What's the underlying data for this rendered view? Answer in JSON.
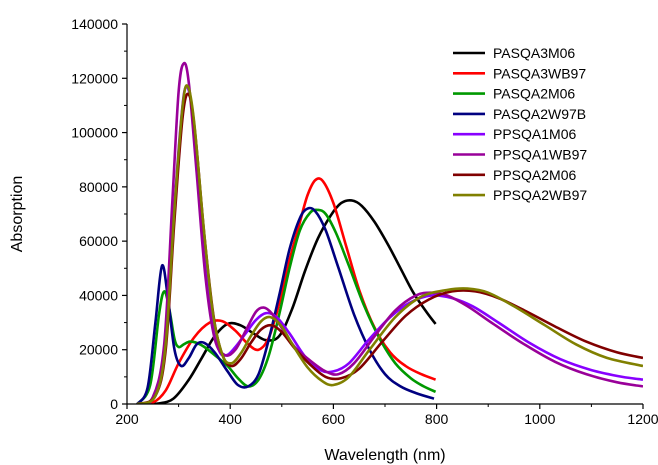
{
  "chart_data": {
    "type": "line",
    "title": "",
    "xlabel": "Wavelength (nm)",
    "ylabel": "Absorption",
    "xlim": [
      200,
      1200
    ],
    "ylim": [
      0,
      140000
    ],
    "x_ticks": [
      200,
      400,
      600,
      800,
      1000,
      1200
    ],
    "y_ticks": [
      0,
      20000,
      40000,
      60000,
      80000,
      100000,
      120000,
      140000
    ],
    "grid": false,
    "legend_position": "top-right",
    "series": [
      {
        "name": "PASQA3M06",
        "color": "#000000",
        "points": [
          [
            220,
            0
          ],
          [
            260,
            200
          ],
          [
            290,
            2000
          ],
          [
            320,
            9000
          ],
          [
            345,
            17000
          ],
          [
            370,
            25000
          ],
          [
            395,
            29500
          ],
          [
            420,
            29000
          ],
          [
            445,
            26000
          ],
          [
            470,
            23500
          ],
          [
            495,
            25000
          ],
          [
            520,
            35000
          ],
          [
            545,
            49000
          ],
          [
            570,
            61000
          ],
          [
            595,
            69500
          ],
          [
            615,
            74000
          ],
          [
            635,
            75000
          ],
          [
            655,
            73000
          ],
          [
            680,
            67000
          ],
          [
            705,
            59000
          ],
          [
            730,
            50000
          ],
          [
            755,
            41000
          ],
          [
            780,
            34000
          ],
          [
            798,
            29500
          ]
        ]
      },
      {
        "name": "PASQA3WB97",
        "color": "#ff0000",
        "points": [
          [
            220,
            0
          ],
          [
            250,
            500
          ],
          [
            275,
            5000
          ],
          [
            300,
            15000
          ],
          [
            330,
            24500
          ],
          [
            360,
            30000
          ],
          [
            385,
            30500
          ],
          [
            410,
            27000
          ],
          [
            435,
            22000
          ],
          [
            455,
            20000
          ],
          [
            475,
            24500
          ],
          [
            495,
            37000
          ],
          [
            515,
            53000
          ],
          [
            535,
            67000
          ],
          [
            550,
            77000
          ],
          [
            565,
            82500
          ],
          [
            580,
            82000
          ],
          [
            600,
            74000
          ],
          [
            625,
            58000
          ],
          [
            650,
            42000
          ],
          [
            680,
            28000
          ],
          [
            710,
            19000
          ],
          [
            740,
            14000
          ],
          [
            770,
            11000
          ],
          [
            798,
            9000
          ]
        ]
      },
      {
        "name": "PASQA2M06",
        "color": "#009900",
        "points": [
          [
            220,
            0
          ],
          [
            245,
            7000
          ],
          [
            262,
            33000
          ],
          [
            272,
            41500
          ],
          [
            282,
            35000
          ],
          [
            292,
            24000
          ],
          [
            300,
            21000
          ],
          [
            310,
            22000
          ],
          [
            322,
            23000
          ],
          [
            335,
            22500
          ],
          [
            350,
            21000
          ],
          [
            370,
            18000
          ],
          [
            395,
            14000
          ],
          [
            415,
            9500
          ],
          [
            435,
            6500
          ],
          [
            455,
            9000
          ],
          [
            475,
            18000
          ],
          [
            495,
            33000
          ],
          [
            515,
            50000
          ],
          [
            535,
            64000
          ],
          [
            555,
            70500
          ],
          [
            570,
            71500
          ],
          [
            585,
            70000
          ],
          [
            605,
            63000
          ],
          [
            630,
            51000
          ],
          [
            660,
            36000
          ],
          [
            690,
            24000
          ],
          [
            720,
            15000
          ],
          [
            750,
            9500
          ],
          [
            775,
            6500
          ],
          [
            798,
            4500
          ]
        ]
      },
      {
        "name": "PASQA2W97B",
        "color": "#000080",
        "points": [
          [
            220,
            0
          ],
          [
            240,
            6000
          ],
          [
            255,
            30000
          ],
          [
            268,
            51000
          ],
          [
            280,
            38000
          ],
          [
            292,
            20000
          ],
          [
            305,
            14000
          ],
          [
            320,
            17000
          ],
          [
            335,
            22000
          ],
          [
            350,
            22500
          ],
          [
            370,
            19000
          ],
          [
            395,
            12000
          ],
          [
            415,
            7000
          ],
          [
            435,
            6500
          ],
          [
            455,
            11000
          ],
          [
            475,
            24000
          ],
          [
            495,
            40000
          ],
          [
            515,
            57000
          ],
          [
            535,
            68500
          ],
          [
            550,
            72000
          ],
          [
            565,
            71000
          ],
          [
            585,
            64000
          ],
          [
            610,
            50000
          ],
          [
            640,
            33000
          ],
          [
            670,
            20000
          ],
          [
            700,
            11000
          ],
          [
            730,
            6500
          ],
          [
            760,
            4000
          ],
          [
            795,
            2000
          ]
        ]
      },
      {
        "name": "PPSQA1M06",
        "color": "#8800ff",
        "points": [
          [
            220,
            0
          ],
          [
            250,
            2000
          ],
          [
            272,
            20000
          ],
          [
            290,
            68000
          ],
          [
            305,
            105000
          ],
          [
            315,
            117000
          ],
          [
            328,
            106000
          ],
          [
            345,
            70000
          ],
          [
            362,
            35000
          ],
          [
            378,
            20000
          ],
          [
            393,
            18000
          ],
          [
            410,
            21000
          ],
          [
            430,
            26000
          ],
          [
            450,
            31000
          ],
          [
            470,
            33500
          ],
          [
            490,
            32000
          ],
          [
            515,
            26000
          ],
          [
            545,
            17500
          ],
          [
            575,
            12500
          ],
          [
            600,
            12000
          ],
          [
            630,
            15000
          ],
          [
            670,
            24000
          ],
          [
            710,
            32000
          ],
          [
            750,
            37500
          ],
          [
            790,
            40000
          ],
          [
            830,
            39000
          ],
          [
            870,
            36000
          ],
          [
            920,
            30000
          ],
          [
            980,
            22500
          ],
          [
            1040,
            16500
          ],
          [
            1100,
            12500
          ],
          [
            1160,
            10000
          ],
          [
            1200,
            9000
          ]
        ]
      },
      {
        "name": "PPSQA1WB97",
        "color": "#990099",
        "points": [
          [
            220,
            0
          ],
          [
            250,
            2500
          ],
          [
            272,
            22000
          ],
          [
            288,
            75000
          ],
          [
            300,
            115000
          ],
          [
            310,
            125500
          ],
          [
            320,
            118000
          ],
          [
            335,
            85000
          ],
          [
            352,
            47000
          ],
          [
            370,
            24000
          ],
          [
            390,
            18000
          ],
          [
            410,
            20000
          ],
          [
            430,
            27000
          ],
          [
            450,
            34000
          ],
          [
            465,
            35500
          ],
          [
            480,
            33500
          ],
          [
            500,
            28000
          ],
          [
            525,
            21000
          ],
          [
            555,
            16000
          ],
          [
            585,
            12000
          ],
          [
            610,
            11000
          ],
          [
            640,
            15000
          ],
          [
            680,
            25000
          ],
          [
            720,
            34500
          ],
          [
            760,
            40000
          ],
          [
            790,
            41000
          ],
          [
            820,
            40000
          ],
          [
            860,
            36000
          ],
          [
            910,
            29500
          ],
          [
            970,
            22000
          ],
          [
            1030,
            15500
          ],
          [
            1090,
            11000
          ],
          [
            1150,
            8000
          ],
          [
            1200,
            6500
          ]
        ]
      },
      {
        "name": "PPSQA2M06",
        "color": "#800000",
        "points": [
          [
            220,
            0
          ],
          [
            255,
            3000
          ],
          [
            275,
            20000
          ],
          [
            292,
            68000
          ],
          [
            308,
            106000
          ],
          [
            320,
            114000
          ],
          [
            332,
            100000
          ],
          [
            350,
            62000
          ],
          [
            368,
            32000
          ],
          [
            385,
            18000
          ],
          [
            402,
            14000
          ],
          [
            420,
            16500
          ],
          [
            440,
            22500
          ],
          [
            460,
            27500
          ],
          [
            480,
            29000
          ],
          [
            500,
            26500
          ],
          [
            525,
            20500
          ],
          [
            555,
            14500
          ],
          [
            585,
            10000
          ],
          [
            615,
            9500
          ],
          [
            650,
            13000
          ],
          [
            695,
            23000
          ],
          [
            740,
            32500
          ],
          [
            785,
            38500
          ],
          [
            830,
            41500
          ],
          [
            875,
            41500
          ],
          [
            920,
            39000
          ],
          [
            970,
            34500
          ],
          [
            1030,
            28500
          ],
          [
            1090,
            23000
          ],
          [
            1150,
            19000
          ],
          [
            1200,
            17000
          ]
        ]
      },
      {
        "name": "PPSQA2WB97",
        "color": "#808000",
        "points": [
          [
            220,
            0
          ],
          [
            255,
            3000
          ],
          [
            275,
            22000
          ],
          [
            292,
            72000
          ],
          [
            308,
            110000
          ],
          [
            318,
            117000
          ],
          [
            330,
            104000
          ],
          [
            348,
            66000
          ],
          [
            366,
            34000
          ],
          [
            385,
            18000
          ],
          [
            402,
            15000
          ],
          [
            420,
            18500
          ],
          [
            440,
            25000
          ],
          [
            460,
            30500
          ],
          [
            478,
            32000
          ],
          [
            498,
            29000
          ],
          [
            522,
            21500
          ],
          [
            550,
            13500
          ],
          [
            578,
            8500
          ],
          [
            600,
            7000
          ],
          [
            630,
            10000
          ],
          [
            670,
            20000
          ],
          [
            720,
            32000
          ],
          [
            770,
            39500
          ],
          [
            820,
            42000
          ],
          [
            860,
            42500
          ],
          [
            900,
            41000
          ],
          [
            950,
            36000
          ],
          [
            1010,
            29000
          ],
          [
            1070,
            22000
          ],
          [
            1130,
            17000
          ],
          [
            1200,
            14000
          ]
        ]
      }
    ]
  }
}
